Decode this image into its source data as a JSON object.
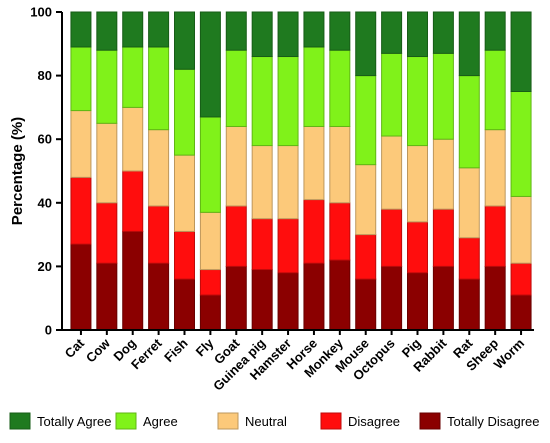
{
  "chart_data": {
    "type": "bar",
    "stacked": true,
    "ylabel": "Percentage (%)",
    "xlabel": "",
    "ylim": [
      0,
      100
    ],
    "yticks": [
      0,
      20,
      40,
      60,
      80,
      100
    ],
    "categories": [
      "Cat",
      "Cow",
      "Dog",
      "Ferret",
      "Fish",
      "Fly",
      "Goat",
      "Guinea pig",
      "Hamster",
      "Horse",
      "Monkey",
      "Mouse",
      "Octopus",
      "Pig",
      "Rabbit",
      "Rat",
      "Sheep",
      "Worm"
    ],
    "legend_position": "bottom",
    "series": [
      {
        "name": "Totally Disagree",
        "color": "#8b0000",
        "values": [
          27,
          21,
          31,
          21,
          16,
          11,
          20,
          19,
          18,
          21,
          22,
          16,
          20,
          18,
          20,
          16,
          20,
          11
        ]
      },
      {
        "name": "Disagree",
        "color": "#ff0d0d",
        "values": [
          21,
          19,
          19,
          18,
          15,
          8,
          19,
          16,
          17,
          20,
          18,
          14,
          18,
          16,
          18,
          13,
          19,
          10
        ]
      },
      {
        "name": "Neutral",
        "color": "#fcc97a",
        "values": [
          21,
          25,
          20,
          24,
          24,
          18,
          25,
          23,
          23,
          23,
          24,
          22,
          23,
          24,
          22,
          22,
          24,
          21
        ]
      },
      {
        "name": "Agree",
        "color": "#80f21a",
        "values": [
          20,
          23,
          19,
          26,
          27,
          30,
          24,
          28,
          28,
          25,
          24,
          28,
          26,
          28,
          27,
          29,
          25,
          33
        ]
      },
      {
        "name": "Totally Agree",
        "color": "#1f7a1f",
        "values": [
          11,
          12,
          11,
          11,
          18,
          33,
          12,
          14,
          14,
          11,
          12,
          20,
          13,
          14,
          13,
          20,
          12,
          25
        ]
      }
    ],
    "legend_order": [
      "Totally Agree",
      "Agree",
      "Neutral",
      "Disagree",
      "Totally Disagree"
    ]
  }
}
